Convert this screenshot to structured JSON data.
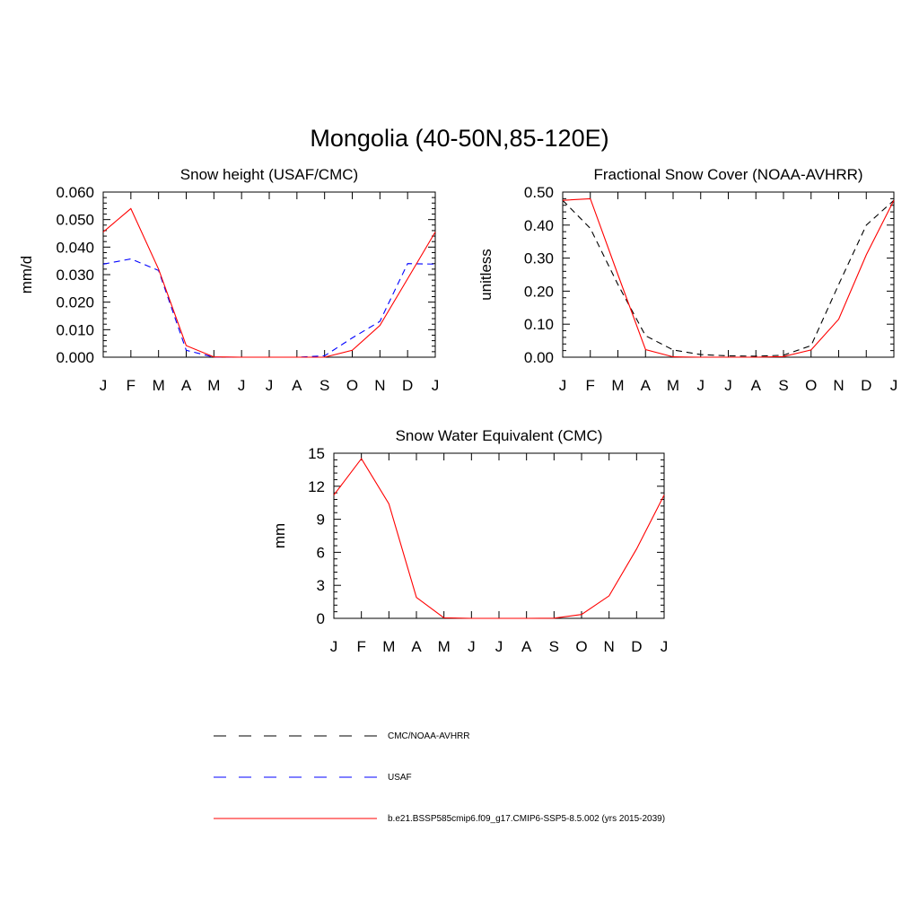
{
  "figure": {
    "title": "Mongolia (40-50N,85-120E)"
  },
  "legend": {
    "entries": [
      {
        "label": "CMC/NOAA-AVHRR",
        "color": "#000000",
        "dashed": true
      },
      {
        "label": "USAF",
        "color": "#0000ff",
        "dashed": true
      },
      {
        "label": "b.e21.BSSP585cmip6.f09_g17.CMIP6-SSP5-8.5.002 (yrs 2015-2039)",
        "color": "#ff0000",
        "dashed": false
      }
    ]
  },
  "chart_data": [
    {
      "type": "line",
      "title": "Snow height (USAF/CMC)",
      "xlabel": "",
      "ylabel": "mm/d",
      "categories": [
        "J",
        "F",
        "M",
        "A",
        "M",
        "J",
        "J",
        "A",
        "S",
        "O",
        "N",
        "D",
        "J"
      ],
      "yticks": [
        "0.000",
        "0.010",
        "0.020",
        "0.030",
        "0.040",
        "0.050",
        "0.060"
      ],
      "ylim": [
        0,
        0.06
      ],
      "series": [
        {
          "color": "#0000ff",
          "dashed": true,
          "values": [
            0.0338,
            0.0357,
            0.0315,
            0.0025,
            0.0,
            0.0,
            0.0,
            0.0,
            0.0005,
            0.007,
            0.013,
            0.034,
            0.0338
          ]
        },
        {
          "color": "#ff0000",
          "dashed": false,
          "values": [
            0.0455,
            0.054,
            0.032,
            0.0042,
            0.0001,
            0.0,
            0.0,
            0.0,
            0.0,
            0.0025,
            0.0115,
            0.0285,
            0.0455
          ]
        }
      ]
    },
    {
      "type": "line",
      "title": "Fractional Snow Cover (NOAA-AVHRR)",
      "xlabel": "",
      "ylabel": "unitless",
      "categories": [
        "J",
        "F",
        "M",
        "A",
        "M",
        "J",
        "J",
        "A",
        "S",
        "O",
        "N",
        "D",
        "J"
      ],
      "yticks": [
        "0.00",
        "0.10",
        "0.20",
        "0.30",
        "0.40",
        "0.50"
      ],
      "ylim": [
        0,
        0.5
      ],
      "series": [
        {
          "color": "#000000",
          "dashed": true,
          "values": [
            0.475,
            0.39,
            0.22,
            0.065,
            0.022,
            0.008,
            0.004,
            0.003,
            0.006,
            0.035,
            0.22,
            0.4,
            0.475
          ]
        },
        {
          "color": "#ff0000",
          "dashed": false,
          "values": [
            0.475,
            0.48,
            0.25,
            0.023,
            0.001,
            0.0,
            0.0,
            0.0,
            0.002,
            0.022,
            0.115,
            0.31,
            0.475
          ]
        }
      ]
    },
    {
      "type": "line",
      "title": "Snow Water Equivalent (CMC)",
      "xlabel": "",
      "ylabel": "mm",
      "categories": [
        "J",
        "F",
        "M",
        "A",
        "M",
        "J",
        "J",
        "A",
        "S",
        "O",
        "N",
        "D",
        "J"
      ],
      "yticks": [
        "0",
        "3",
        "6",
        "9",
        "12",
        "15"
      ],
      "ylim": [
        0,
        15
      ],
      "series": [
        {
          "color": "#000000",
          "dashed": true,
          "values": [
            0,
            0,
            0,
            0,
            0,
            0,
            0,
            0,
            0,
            0,
            0,
            0,
            0
          ]
        },
        {
          "color": "#ff0000",
          "dashed": false,
          "values": [
            11.2,
            14.5,
            10.4,
            1.9,
            0.05,
            0.0,
            0.0,
            0.0,
            0.02,
            0.35,
            2.05,
            6.3,
            11.2
          ]
        }
      ]
    }
  ]
}
